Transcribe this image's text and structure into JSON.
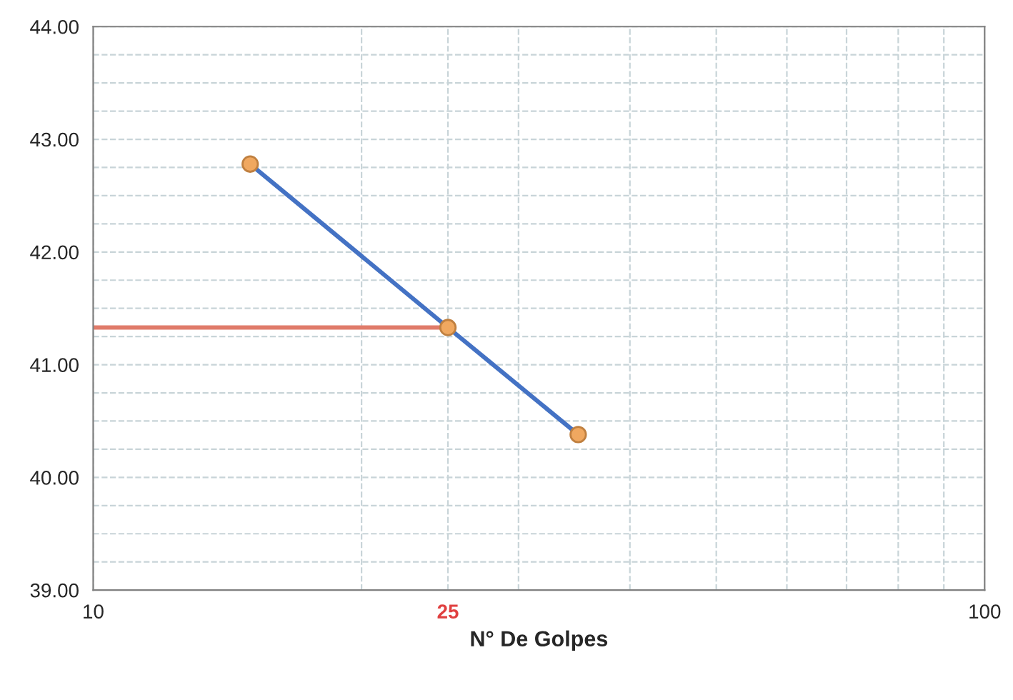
{
  "chart_data": {
    "type": "line",
    "xlabel": "N° De Golpes",
    "log": "x",
    "xlim": [
      10,
      100
    ],
    "xticks": [
      10,
      {
        "value": 25,
        "label": "25"
      },
      100
    ],
    "ylim": [
      39,
      44
    ],
    "yticks": [
      {
        "value": 39,
        "label": "39.00"
      },
      {
        "value": 40,
        "label": "40.00"
      },
      {
        "value": 41,
        "label": "41.00"
      },
      {
        "value": 42,
        "label": "42.00"
      },
      {
        "value": 43,
        "label": "43.00"
      },
      {
        "value": 44,
        "label": "44.00"
      }
    ],
    "grid": true,
    "series": [
      {
        "color": "#e07b6a",
        "x": [
          10,
          25
        ],
        "values": [
          41.33,
          41.33
        ]
      },
      {
        "color": "#4472c4",
        "x": [
          15,
          25,
          35
        ],
        "values": [
          42.78,
          41.33,
          40.38
        ]
      },
      {
        "type": "scatter",
        "color": "#f0a860",
        "x": [
          15,
          25,
          35
        ],
        "values": [
          42.78,
          41.33,
          40.38
        ],
        "marker": "circle"
      }
    ]
  }
}
